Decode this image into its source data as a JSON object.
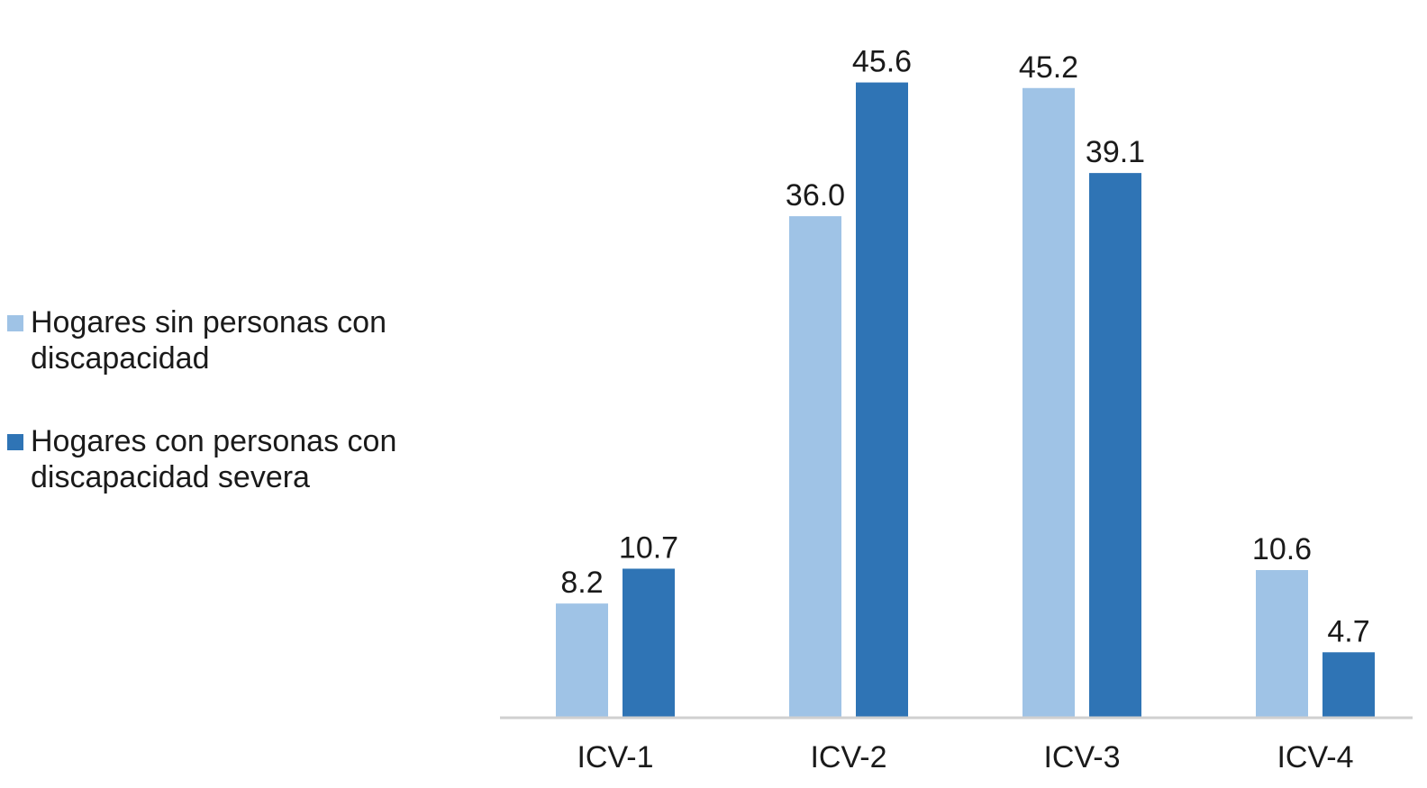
{
  "chart_data": {
    "type": "bar",
    "title": "",
    "xlabel": "",
    "ylabel": "",
    "categories": [
      "ICV-1",
      "ICV-2",
      "ICV-3",
      "ICV-4"
    ],
    "series": [
      {
        "name": "Hogares sin personas con discapacidad",
        "color": "#9fc3e6",
        "values": [
          8.2,
          36.0,
          45.2,
          10.6
        ],
        "labels": [
          "8.2",
          "36.0",
          "45.2",
          "10.6"
        ]
      },
      {
        "name": "Hogares con personas con discapacidad severa",
        "color": "#2f74b5",
        "values": [
          10.7,
          45.6,
          39.1,
          4.7
        ],
        "labels": [
          "10.7",
          "45.6",
          "39.1",
          "4.7"
        ]
      }
    ],
    "ylim": [
      0,
      50
    ],
    "grid": false,
    "legend_position": "left"
  }
}
